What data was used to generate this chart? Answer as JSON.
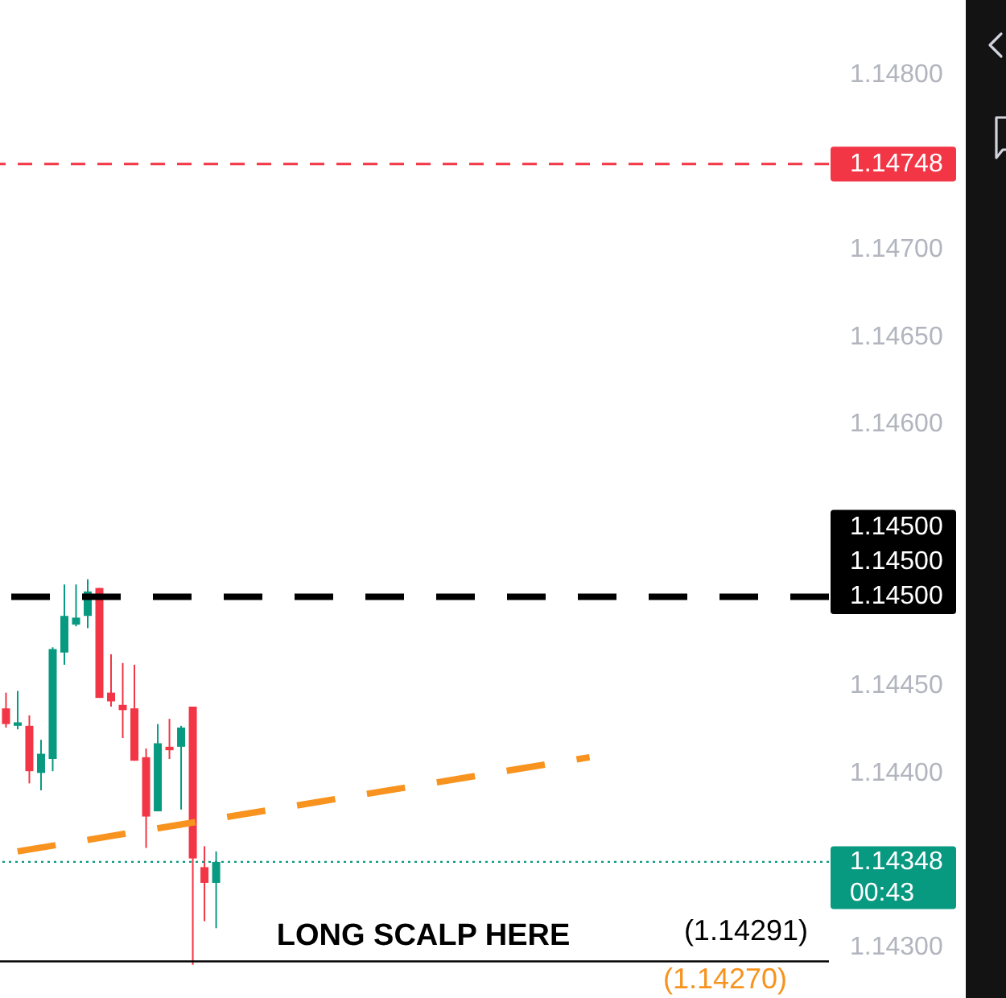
{
  "chart_data": {
    "type": "candlestick",
    "categories": [
      null,
      null,
      null,
      null,
      null,
      null,
      null,
      null,
      null,
      null,
      null,
      null,
      null,
      null,
      null,
      null,
      null,
      null,
      null,
      null,
      null,
      null,
      null,
      null,
      null,
      null,
      null,
      null,
      null,
      null,
      null,
      null,
      null,
      null,
      null,
      null,
      null,
      null,
      null,
      null,
      null,
      null,
      null,
      null,
      null,
      null,
      null,
      null,
      null,
      null,
      null,
      null,
      null,
      null,
      null,
      null,
      null,
      null,
      null,
      null,
      null,
      null,
      null,
      null,
      null,
      null,
      null,
      null,
      null,
      null,
      null
    ],
    "ohlc": [
      [
        1.14436,
        1.14445,
        1.14425,
        1.14427
      ],
      [
        1.14426,
        1.14446,
        1.14424,
        1.14428
      ],
      [
        1.14426,
        1.14432,
        1.14393,
        1.144
      ],
      [
        1.14399,
        1.14418,
        1.14389,
        1.1441
      ],
      [
        1.14407,
        1.14471,
        1.144,
        1.1447
      ],
      [
        1.14468,
        1.14507,
        1.14461,
        1.14489
      ],
      [
        1.14484,
        1.14507,
        1.14483,
        1.14488
      ],
      [
        1.14489,
        1.1451,
        1.14482,
        1.14503
      ],
      [
        1.14505,
        1.14505,
        1.14442,
        1.14442
      ],
      [
        1.14445,
        1.14467,
        1.14437,
        1.1444
      ],
      [
        1.14438,
        1.14462,
        1.14419,
        1.14435
      ],
      [
        1.14436,
        1.14461,
        1.14406,
        1.14406
      ],
      [
        1.14408,
        1.14413,
        1.14356,
        1.14374
      ],
      [
        1.14377,
        1.14427,
        1.14377,
        1.14416
      ],
      [
        1.14414,
        1.1443,
        1.14407,
        1.14412
      ],
      [
        1.14414,
        1.14426,
        1.14378,
        1.14425
      ],
      [
        1.14437,
        1.14437,
        1.14289,
        1.1435
      ],
      [
        1.14345,
        1.14357,
        1.14314,
        1.14336
      ],
      [
        1.14336,
        1.14354,
        1.1431,
        1.14348
      ],
      null,
      null,
      null,
      null,
      null,
      null,
      null,
      null,
      null,
      null,
      null,
      null,
      null,
      null,
      null,
      null,
      null,
      null,
      null,
      null,
      null,
      null,
      null,
      null,
      null,
      null,
      null,
      null,
      null,
      null,
      null,
      null,
      null,
      null,
      null,
      null,
      null,
      null,
      null,
      null,
      null,
      null,
      null,
      null,
      null,
      null,
      null,
      null,
      null,
      null,
      null,
      null
    ],
    "colors": [
      "#f23645",
      "#089981",
      "#f23645",
      "#089981",
      "#089981",
      "#089981",
      "#089981",
      "#089981",
      "#f23645",
      "#f23645",
      "#f23645",
      "#f23645",
      "#f23645",
      "#089981",
      "#f23645",
      "#089981",
      "#f23645",
      "#f23645",
      "#089981",
      null,
      null,
      null,
      null,
      null,
      null,
      null,
      null,
      null,
      null,
      null,
      null,
      null,
      null,
      null,
      null,
      null,
      null,
      null,
      null,
      null,
      null,
      null,
      null,
      null,
      null,
      null,
      null,
      null,
      null,
      null,
      null,
      null,
      null,
      null,
      null,
      null,
      null,
      null,
      null,
      null,
      null,
      null,
      null,
      null,
      null,
      null,
      null,
      null,
      null,
      null,
      null
    ],
    "series": [
      {
        "type": "line",
        "color": "#f7931e",
        "line_style": "dashed",
        "values": [
          null,
          1.14354,
          null,
          null,
          null,
          null,
          null,
          null,
          null,
          null,
          null,
          null,
          null,
          null,
          null,
          null,
          null,
          null,
          null,
          null,
          null,
          null,
          null,
          null,
          null,
          null,
          null,
          null,
          null,
          null,
          null,
          null,
          null,
          null,
          null,
          null,
          null,
          null,
          null,
          null,
          null,
          null,
          null,
          null,
          null,
          null,
          null,
          null,
          null,
          null,
          1.14408,
          null,
          null,
          null,
          null,
          null,
          null,
          null,
          null,
          null,
          null,
          null,
          null,
          null,
          null,
          null,
          null,
          null,
          null,
          null,
          null
        ]
      }
    ],
    "ylim": [
      1.1427,
      1.14842
    ],
    "yticks": [
      {
        "value": 1.143,
        "label": "1.14300"
      },
      {
        "value": 1.144,
        "label": "1.14400"
      },
      {
        "value": 1.1445,
        "label": "1.14450"
      },
      {
        "value": 1.146,
        "label": "1.14600"
      },
      {
        "value": 1.1465,
        "label": "1.14650"
      },
      {
        "value": 1.147,
        "label": "1.14700"
      },
      {
        "value": 1.148,
        "label": "1.14800"
      }
    ],
    "tick_labels": "y",
    "ref_lines": [
      {
        "axis": "y",
        "value": 1.14748,
        "label": "1.14748",
        "color": "#f23645",
        "line_style": "dashed"
      },
      {
        "axis": "y",
        "value": 1.145,
        "label": "1.14500\n1.14500\n1.14500",
        "color": "#000000",
        "line_style": "dashed"
      },
      {
        "axis": "y",
        "value": 1.14348,
        "label": "1.14348\n00:43",
        "color": "#089981",
        "line_style": "dotted"
      },
      {
        "axis": "y",
        "value": 1.14291,
        "label": "(1.14291)",
        "color": "#000000",
        "line_style": "solid"
      }
    ],
    "annotations": [
      "LONG SCALP HERE",
      "(1.14270)"
    ]
  }
}
